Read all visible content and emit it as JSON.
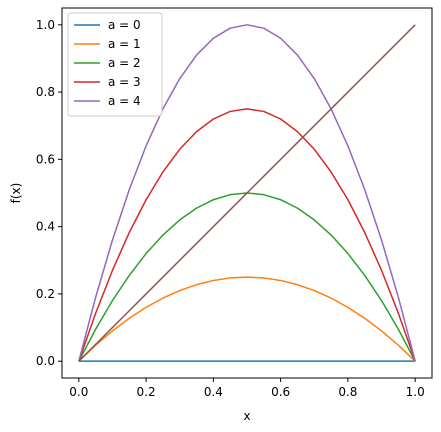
{
  "chart_data": {
    "type": "line",
    "title": "",
    "xlabel": "x",
    "ylabel": "f(x)",
    "xlim": [
      -0.05,
      1.05
    ],
    "ylim": [
      -0.05,
      1.05
    ],
    "xticks": [
      0.0,
      0.2,
      0.4,
      0.6,
      0.8,
      1.0
    ],
    "xtick_labels": [
      "0.0",
      "0.2",
      "0.4",
      "0.6",
      "0.8",
      "1.0"
    ],
    "yticks": [
      0.0,
      0.2,
      0.4,
      0.6,
      0.8,
      1.0
    ],
    "ytick_labels": [
      "0.0",
      "0.2",
      "0.4",
      "0.6",
      "0.8",
      "1.0"
    ],
    "grid": false,
    "legend_position": "top-left",
    "x": [
      0.0,
      0.05,
      0.1,
      0.15,
      0.2,
      0.25,
      0.3,
      0.35,
      0.4,
      0.45,
      0.5,
      0.55,
      0.6,
      0.65,
      0.7,
      0.75,
      0.8,
      0.85,
      0.9,
      0.95,
      1.0
    ],
    "series": [
      {
        "name": "a = 0",
        "color": "#1f77b4",
        "in_legend": true,
        "values": [
          0,
          0,
          0,
          0,
          0,
          0,
          0,
          0,
          0,
          0,
          0,
          0,
          0,
          0,
          0,
          0,
          0,
          0,
          0,
          0,
          0
        ]
      },
      {
        "name": "a = 1",
        "color": "#ff7f0e",
        "in_legend": true,
        "values": [
          0,
          0.0475,
          0.09,
          0.1275,
          0.16,
          0.1875,
          0.21,
          0.2275,
          0.24,
          0.2475,
          0.25,
          0.2475,
          0.24,
          0.2275,
          0.21,
          0.1875,
          0.16,
          0.1275,
          0.09,
          0.0475,
          0
        ]
      },
      {
        "name": "a = 2",
        "color": "#2ca02c",
        "in_legend": true,
        "values": [
          0,
          0.095,
          0.18,
          0.255,
          0.32,
          0.375,
          0.42,
          0.455,
          0.48,
          0.495,
          0.5,
          0.495,
          0.48,
          0.455,
          0.42,
          0.375,
          0.32,
          0.255,
          0.18,
          0.095,
          0
        ]
      },
      {
        "name": "a = 3",
        "color": "#d62728",
        "in_legend": true,
        "values": [
          0,
          0.1425,
          0.27,
          0.3825,
          0.48,
          0.5625,
          0.63,
          0.6825,
          0.72,
          0.7425,
          0.75,
          0.7425,
          0.72,
          0.6825,
          0.63,
          0.5625,
          0.48,
          0.3825,
          0.27,
          0.1425,
          0
        ]
      },
      {
        "name": "a = 4",
        "color": "#9467bd",
        "in_legend": true,
        "values": [
          0,
          0.19,
          0.36,
          0.51,
          0.64,
          0.75,
          0.84,
          0.91,
          0.96,
          0.99,
          1.0,
          0.99,
          0.96,
          0.91,
          0.84,
          0.75,
          0.64,
          0.51,
          0.36,
          0.19,
          0
        ]
      },
      {
        "color": "#8c564b",
        "in_legend": false,
        "values": [
          0,
          0.05,
          0.1,
          0.15,
          0.2,
          0.25,
          0.3,
          0.35,
          0.4,
          0.45,
          0.5,
          0.55,
          0.6,
          0.65,
          0.7,
          0.75,
          0.8,
          0.85,
          0.9,
          0.95,
          1.0
        ]
      }
    ]
  }
}
